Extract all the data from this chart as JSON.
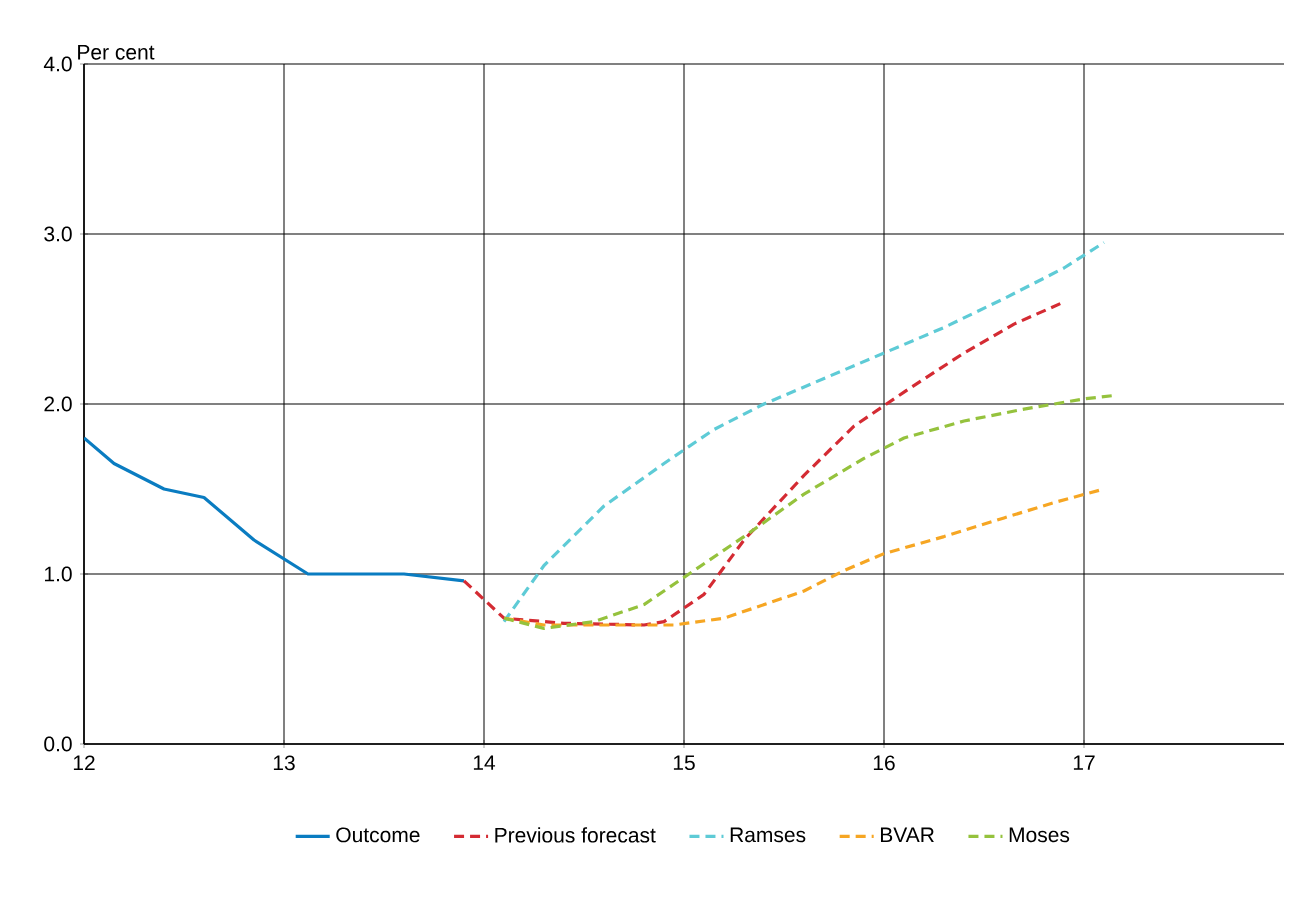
{
  "chart_data": {
    "type": "line",
    "ylabel": "Per cent",
    "xlim": [
      12,
      18
    ],
    "xticks": [
      12,
      13,
      14,
      15,
      16,
      17
    ],
    "ylim": [
      0,
      4
    ],
    "yticks": [
      {
        "value": 0,
        "label": "0.0"
      },
      {
        "value": 1,
        "label": "1.0"
      },
      {
        "value": 2,
        "label": "2.0"
      },
      {
        "value": 3,
        "label": "3.0"
      },
      {
        "value": 4,
        "label": "4.0"
      }
    ],
    "grid": true,
    "legend": "bottom",
    "series": [
      {
        "name": "Outcome",
        "color": "#0a7cc1",
        "line_style": "solid",
        "x": [
          12,
          12.15,
          12.4,
          12.6,
          12.85,
          13.12,
          13.6,
          13.9
        ],
        "values": [
          1.8,
          1.65,
          1.5,
          1.45,
          1.2,
          1.0,
          1.0,
          0.96
        ]
      },
      {
        "name": "Previous forecast",
        "color": "#d42b33",
        "line_style": "dashed",
        "x": [
          13.9,
          14.1,
          14.4,
          14.8,
          14.9,
          15.1,
          15.3,
          15.6,
          15.85,
          16.1,
          16.4,
          16.65,
          16.9
        ],
        "values": [
          0.96,
          0.74,
          0.71,
          0.7,
          0.72,
          0.88,
          1.2,
          1.58,
          1.87,
          2.07,
          2.3,
          2.47,
          2.6
        ]
      },
      {
        "name": "Ramses",
        "color": "#5ecbd6",
        "line_style": "dashed",
        "x": [
          14.1,
          14.3,
          14.6,
          14.9,
          15.15,
          15.4,
          15.7,
          16.0,
          16.3,
          16.6,
          16.9,
          17.1
        ],
        "values": [
          0.72,
          1.05,
          1.4,
          1.65,
          1.85,
          2.0,
          2.15,
          2.3,
          2.45,
          2.62,
          2.8,
          2.95
        ]
      },
      {
        "name": "BVAR",
        "color": "#f6a623",
        "line_style": "dashed",
        "x": [
          14.1,
          14.3,
          14.6,
          14.95,
          15.2,
          15.4,
          15.6,
          15.8,
          16.0,
          16.3,
          16.6,
          16.85,
          17.1
        ],
        "values": [
          0.74,
          0.7,
          0.7,
          0.7,
          0.74,
          0.82,
          0.9,
          1.02,
          1.12,
          1.22,
          1.33,
          1.42,
          1.5
        ]
      },
      {
        "name": "Moses",
        "color": "#95c23d",
        "line_style": "dashed",
        "x": [
          14.1,
          14.3,
          14.55,
          14.8,
          15.0,
          15.3,
          15.6,
          15.9,
          16.1,
          16.4,
          16.7,
          17.0,
          17.15
        ],
        "values": [
          0.74,
          0.68,
          0.72,
          0.82,
          0.98,
          1.22,
          1.47,
          1.68,
          1.8,
          1.9,
          1.97,
          2.03,
          2.05
        ]
      }
    ]
  }
}
